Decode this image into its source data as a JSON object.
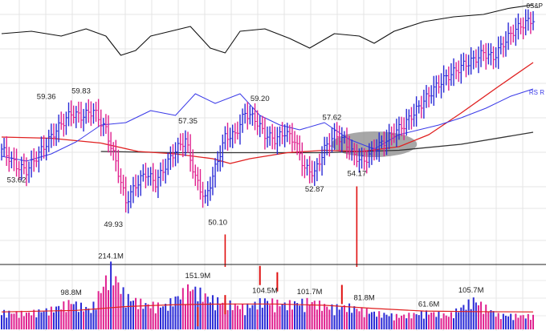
{
  "chart_data": {
    "type": "bar",
    "title": "",
    "legend": {
      "sp_tag": "0S&P",
      "rs_tag": "RS R"
    },
    "colors": {
      "up": "#2a2ad6",
      "down": "#e0208f",
      "ma_fast": "#e02020",
      "ma_slow": "#333333",
      "rs_line": "#3a3ae8",
      "sp_line": "#111111",
      "volume_ma": "#e02020",
      "highlight": "#8a8a8a",
      "markers": "#e01010"
    },
    "price_ylim": [
      46,
      68
    ],
    "price_points": [
      {
        "i": 0,
        "c": 55.6
      },
      {
        "i": 6,
        "c": 54.2
      },
      {
        "i": 10,
        "c": 53.8
      },
      {
        "i": 16,
        "c": 55.5
      },
      {
        "i": 22,
        "c": 57.2
      },
      {
        "i": 28,
        "c": 58.6
      },
      {
        "i": 32,
        "c": 58.3
      },
      {
        "i": 37,
        "c": 58.8
      },
      {
        "i": 42,
        "c": 57.2
      },
      {
        "i": 46,
        "c": 54.5
      },
      {
        "i": 50,
        "c": 51.2
      },
      {
        "i": 54,
        "c": 52.6
      },
      {
        "i": 58,
        "c": 53.6
      },
      {
        "i": 62,
        "c": 52.8
      },
      {
        "i": 66,
        "c": 54.2
      },
      {
        "i": 70,
        "c": 55.5
      },
      {
        "i": 74,
        "c": 56.4
      },
      {
        "i": 78,
        "c": 53.2
      },
      {
        "i": 82,
        "c": 51.4
      },
      {
        "i": 86,
        "c": 54.0
      },
      {
        "i": 90,
        "c": 56.6
      },
      {
        "i": 94,
        "c": 56.8
      },
      {
        "i": 98,
        "c": 58.6
      },
      {
        "i": 102,
        "c": 58.1
      },
      {
        "i": 106,
        "c": 56.8
      },
      {
        "i": 110,
        "c": 56.4
      },
      {
        "i": 114,
        "c": 57.0
      },
      {
        "i": 118,
        "c": 56.3
      },
      {
        "i": 122,
        "c": 54.0
      },
      {
        "i": 126,
        "c": 53.6
      },
      {
        "i": 130,
        "c": 55.6
      },
      {
        "i": 134,
        "c": 56.8
      },
      {
        "i": 138,
        "c": 56.3
      },
      {
        "i": 142,
        "c": 55.0
      },
      {
        "i": 146,
        "c": 54.6
      },
      {
        "i": 150,
        "c": 55.6
      },
      {
        "i": 154,
        "c": 56.2
      },
      {
        "i": 158,
        "c": 57.0
      },
      {
        "i": 162,
        "c": 57.6
      },
      {
        "i": 166,
        "c": 58.6
      },
      {
        "i": 170,
        "c": 59.6
      },
      {
        "i": 174,
        "c": 60.6
      },
      {
        "i": 178,
        "c": 61.4
      },
      {
        "i": 182,
        "c": 62.0
      },
      {
        "i": 186,
        "c": 62.6
      },
      {
        "i": 190,
        "c": 63.0
      },
      {
        "i": 194,
        "c": 63.6
      },
      {
        "i": 198,
        "c": 63.2
      },
      {
        "i": 202,
        "c": 64.4
      },
      {
        "i": 206,
        "c": 65.4
      },
      {
        "i": 210,
        "c": 66.0
      },
      {
        "i": 214,
        "c": 66.4
      }
    ],
    "price_labels": [
      {
        "text": "53.62",
        "i": 6,
        "v": 53.62,
        "pos": "below"
      },
      {
        "text": "59.36",
        "i": 18,
        "v": 59.36,
        "pos": "above"
      },
      {
        "text": "59.83",
        "i": 32,
        "v": 59.83,
        "pos": "above"
      },
      {
        "text": "49.93",
        "i": 45,
        "v": 49.93,
        "pos": "below"
      },
      {
        "text": "57.35",
        "i": 75,
        "v": 57.35,
        "pos": "above"
      },
      {
        "text": "50.10",
        "i": 87,
        "v": 50.1,
        "pos": "below"
      },
      {
        "text": "59.20",
        "i": 104,
        "v": 59.2,
        "pos": "above"
      },
      {
        "text": "52.87",
        "i": 126,
        "v": 52.87,
        "pos": "below"
      },
      {
        "text": "57.62",
        "i": 133,
        "v": 57.62,
        "pos": "above"
      },
      {
        "text": "54.17",
        "i": 143,
        "v": 54.17,
        "pos": "below"
      }
    ],
    "ma_fast_points": [
      {
        "i": 0,
        "v": 56.6
      },
      {
        "i": 20,
        "v": 56.5
      },
      {
        "i": 40,
        "v": 56.1
      },
      {
        "i": 55,
        "v": 55.4
      },
      {
        "i": 70,
        "v": 55.2
      },
      {
        "i": 85,
        "v": 54.8
      },
      {
        "i": 92,
        "v": 54.4
      },
      {
        "i": 100,
        "v": 54.8
      },
      {
        "i": 115,
        "v": 55.3
      },
      {
        "i": 130,
        "v": 55.5
      },
      {
        "i": 145,
        "v": 55.4
      },
      {
        "i": 160,
        "v": 55.8
      },
      {
        "i": 172,
        "v": 56.8
      },
      {
        "i": 185,
        "v": 58.6
      },
      {
        "i": 200,
        "v": 60.8
      },
      {
        "i": 214,
        "v": 62.8
      }
    ],
    "ma_slow_points": [
      {
        "i": 40,
        "v": 55.4
      },
      {
        "i": 70,
        "v": 55.3
      },
      {
        "i": 100,
        "v": 55.3
      },
      {
        "i": 130,
        "v": 55.3
      },
      {
        "i": 160,
        "v": 55.5
      },
      {
        "i": 185,
        "v": 56.0
      },
      {
        "i": 214,
        "v": 57.0
      }
    ],
    "rs_points": [
      {
        "i": 0,
        "v": 55.0
      },
      {
        "i": 10,
        "v": 54.6
      },
      {
        "i": 20,
        "v": 55.2
      },
      {
        "i": 30,
        "v": 56.2
      },
      {
        "i": 40,
        "v": 57.6
      },
      {
        "i": 50,
        "v": 57.8
      },
      {
        "i": 60,
        "v": 58.8
      },
      {
        "i": 70,
        "v": 58.4
      },
      {
        "i": 78,
        "v": 60.2
      },
      {
        "i": 86,
        "v": 59.4
      },
      {
        "i": 96,
        "v": 60.2
      },
      {
        "i": 104,
        "v": 58.4
      },
      {
        "i": 112,
        "v": 57.6
      },
      {
        "i": 120,
        "v": 57.2
      },
      {
        "i": 130,
        "v": 57.8
      },
      {
        "i": 140,
        "v": 56.4
      },
      {
        "i": 150,
        "v": 55.6
      },
      {
        "i": 160,
        "v": 56.8
      },
      {
        "i": 168,
        "v": 57.2
      },
      {
        "i": 176,
        "v": 57.6
      },
      {
        "i": 185,
        "v": 58.2
      },
      {
        "i": 195,
        "v": 59.0
      },
      {
        "i": 205,
        "v": 60.0
      },
      {
        "i": 214,
        "v": 60.6
      }
    ],
    "sp_points": [
      {
        "i": 0,
        "v": 65.2
      },
      {
        "i": 12,
        "v": 65.4
      },
      {
        "i": 24,
        "v": 65.0
      },
      {
        "i": 34,
        "v": 65.6
      },
      {
        "i": 42,
        "v": 65.0
      },
      {
        "i": 48,
        "v": 63.4
      },
      {
        "i": 54,
        "v": 63.8
      },
      {
        "i": 60,
        "v": 65.0
      },
      {
        "i": 68,
        "v": 65.4
      },
      {
        "i": 76,
        "v": 65.8
      },
      {
        "i": 84,
        "v": 64.0
      },
      {
        "i": 90,
        "v": 63.6
      },
      {
        "i": 96,
        "v": 65.4
      },
      {
        "i": 106,
        "v": 65.6
      },
      {
        "i": 116,
        "v": 64.8
      },
      {
        "i": 124,
        "v": 64.0
      },
      {
        "i": 134,
        "v": 65.2
      },
      {
        "i": 144,
        "v": 65.0
      },
      {
        "i": 150,
        "v": 64.4
      },
      {
        "i": 158,
        "v": 65.4
      },
      {
        "i": 170,
        "v": 66.2
      },
      {
        "i": 182,
        "v": 66.6
      },
      {
        "i": 194,
        "v": 66.8
      },
      {
        "i": 204,
        "v": 67.3
      },
      {
        "i": 214,
        "v": 67.6
      }
    ],
    "highlight_range": {
      "i_start": 138,
      "i_end": 162,
      "v": 56.0
    },
    "volume_ylim": [
      0,
      230
    ],
    "volume_unit": "M",
    "volume_points": [
      {
        "i": 0,
        "v": 62
      },
      {
        "i": 10,
        "v": 58
      },
      {
        "i": 20,
        "v": 72
      },
      {
        "i": 28,
        "v": 98.8
      },
      {
        "i": 36,
        "v": 70
      },
      {
        "i": 44,
        "v": 214.1
      },
      {
        "i": 50,
        "v": 118
      },
      {
        "i": 58,
        "v": 90
      },
      {
        "i": 66,
        "v": 85
      },
      {
        "i": 76,
        "v": 151.9
      },
      {
        "i": 84,
        "v": 112
      },
      {
        "i": 90,
        "v": 95
      },
      {
        "i": 98,
        "v": 80
      },
      {
        "i": 106,
        "v": 104.5
      },
      {
        "i": 114,
        "v": 90
      },
      {
        "i": 124,
        "v": 101.7
      },
      {
        "i": 132,
        "v": 80
      },
      {
        "i": 140,
        "v": 81.8
      },
      {
        "i": 150,
        "v": 60
      },
      {
        "i": 160,
        "v": 48
      },
      {
        "i": 172,
        "v": 61.6
      },
      {
        "i": 180,
        "v": 50
      },
      {
        "i": 190,
        "v": 105.7
      },
      {
        "i": 200,
        "v": 52
      },
      {
        "i": 214,
        "v": 48
      }
    ],
    "volume_labels": [
      {
        "text": "214.1M",
        "i": 44,
        "v": 214.1
      },
      {
        "text": "98.8M",
        "i": 28,
        "v": 98.8
      },
      {
        "text": "151.9M",
        "i": 79,
        "v": 151.9
      },
      {
        "text": "104.5M",
        "i": 106,
        "v": 104.5
      },
      {
        "text": "101.7M",
        "i": 124,
        "v": 101.7
      },
      {
        "text": "81.8M",
        "i": 146,
        "v": 81.8
      },
      {
        "text": "61.6M",
        "i": 172,
        "v": 61.6
      },
      {
        "text": "105.7M",
        "i": 189,
        "v": 105.7
      }
    ],
    "volume_ma_points": [
      {
        "i": 0,
        "v": 55
      },
      {
        "i": 30,
        "v": 60
      },
      {
        "i": 50,
        "v": 72
      },
      {
        "i": 70,
        "v": 78
      },
      {
        "i": 90,
        "v": 80
      },
      {
        "i": 110,
        "v": 80
      },
      {
        "i": 130,
        "v": 76
      },
      {
        "i": 150,
        "v": 66
      },
      {
        "i": 170,
        "v": 58
      },
      {
        "i": 190,
        "v": 56
      },
      {
        "i": 214,
        "v": 55
      }
    ],
    "volume_markers": [
      {
        "i": 79,
        "v": 40
      },
      {
        "i": 90,
        "v": 78
      },
      {
        "i": 104,
        "v": 170
      },
      {
        "i": 111,
        "v": 150
      },
      {
        "i": 137,
        "v": 110
      }
    ],
    "price_markers": [
      {
        "i": 90,
        "v_top": 48.5,
        "v_bottom": 45.8
      },
      {
        "i": 143,
        "v_top": 52.5,
        "v_bottom": 45.8
      }
    ]
  }
}
